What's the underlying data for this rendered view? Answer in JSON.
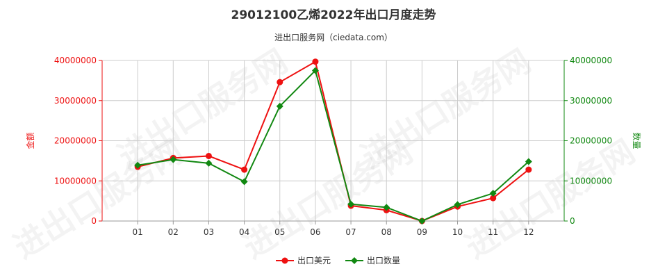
{
  "title": "29012100乙烯2022年出口月度走势",
  "subtitle": "进出口服务网（ciedata.com）",
  "watermark": "进出口服务网",
  "chart_data": {
    "type": "line",
    "categories": [
      "01",
      "02",
      "03",
      "04",
      "05",
      "06",
      "07",
      "08",
      "09",
      "10",
      "11",
      "12"
    ],
    "series": [
      {
        "name": "出口美元",
        "axis": "left",
        "color": "#ee1111",
        "marker": "circle",
        "values": [
          13500000,
          15700000,
          16200000,
          12800000,
          34600000,
          39700000,
          3800000,
          2700000,
          0,
          3600000,
          5700000,
          12800000
        ]
      },
      {
        "name": "出口数量",
        "axis": "right",
        "color": "#118811",
        "marker": "diamond",
        "values": [
          13900000,
          15300000,
          14400000,
          9800000,
          28600000,
          37500000,
          4200000,
          3400000,
          0,
          4100000,
          6900000,
          14800000
        ]
      }
    ],
    "ylabel_left": "金额",
    "ylabel_right": "数量",
    "ylim_left": [
      0,
      40000000
    ],
    "ylim_right": [
      0,
      40000000
    ],
    "yticks_left": [
      "0",
      "10000000",
      "20000000",
      "30000000",
      "40000000"
    ],
    "yticks_right": [
      "0",
      "10000000",
      "20000000",
      "30000000",
      "40000000"
    ],
    "left_axis_color": "#ee1111",
    "right_axis_color": "#118811",
    "grid": true,
    "legend_position": "bottom-center"
  }
}
